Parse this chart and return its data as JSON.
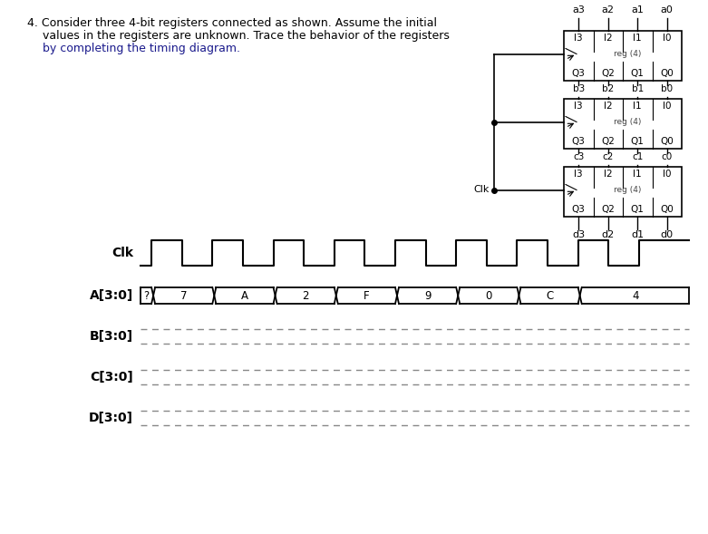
{
  "bg_color": "#ffffff",
  "reg_input_labels": [
    "I3",
    "I2",
    "I1",
    "I0"
  ],
  "reg_output_labels": [
    "Q3",
    "Q2",
    "Q1",
    "Q0"
  ],
  "a_inputs": [
    "a3",
    "a2",
    "a1",
    "a0"
  ],
  "b_inputs": [
    "b3",
    "b2",
    "b1",
    "b0"
  ],
  "c_inputs": [
    "c3",
    "c2",
    "c1",
    "c0"
  ],
  "d_outputs": [
    "d3",
    "d2",
    "d1",
    "d0"
  ],
  "A_values": [
    "?",
    "7",
    "A",
    "2",
    "F",
    "9",
    "0",
    "C",
    "4"
  ],
  "clk_cycles": 9,
  "dash_color": "#888888",
  "line1": "4. Consider three 4-bit registers connected as shown. Assume the initial",
  "line2": "values in the registers are unknown. Trace the behavior of the registers",
  "line3": "by completing the timing diagram.",
  "line1_color": "#000000",
  "line2_color": "#000000",
  "line3_color": "#1a1a8c",
  "text_fontsize": 9,
  "reg_label": "reg (4)"
}
